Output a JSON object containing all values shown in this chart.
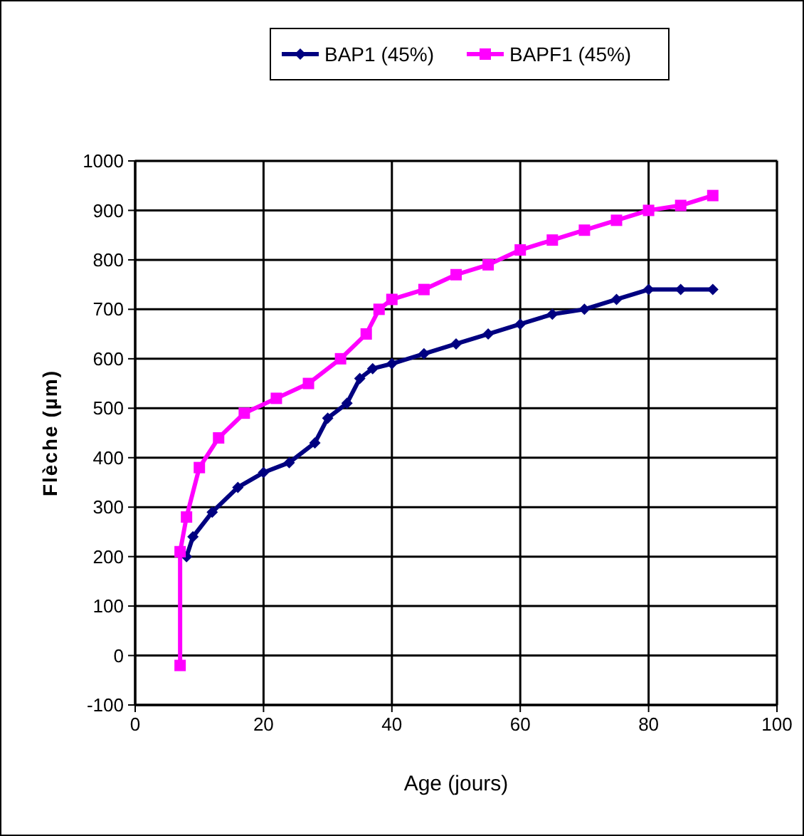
{
  "chart_data": {
    "type": "line",
    "xlabel": "Age (jours)",
    "ylabel": "Flèche (µm)",
    "xlim": [
      0,
      100
    ],
    "xticks": [
      0,
      20,
      40,
      60,
      80,
      100
    ],
    "ylim": [
      -100,
      1000
    ],
    "yticks": [
      -100,
      0,
      100,
      200,
      300,
      400,
      500,
      600,
      700,
      800,
      900,
      1000
    ],
    "grid": true,
    "legend": "top",
    "series": [
      {
        "name": "BAP1 (45%)",
        "color": "#000080",
        "marker": "diamond",
        "x": [
          8,
          9,
          12,
          16,
          20,
          24,
          28,
          30,
          33,
          35,
          37,
          40,
          45,
          50,
          55,
          60,
          65,
          70,
          75,
          80,
          85,
          90
        ],
        "values": [
          200,
          240,
          290,
          340,
          370,
          390,
          430,
          480,
          510,
          560,
          580,
          590,
          610,
          630,
          650,
          670,
          690,
          700,
          720,
          740,
          740,
          740
        ]
      },
      {
        "name": "BAPF1 (45%)",
        "color": "#ff00ff",
        "marker": "square",
        "x": [
          7,
          7,
          8,
          10,
          13,
          17,
          22,
          27,
          32,
          36,
          38,
          40,
          45,
          50,
          55,
          60,
          65,
          70,
          75,
          80,
          85,
          90
        ],
        "values": [
          -20,
          210,
          280,
          380,
          440,
          490,
          520,
          550,
          600,
          650,
          700,
          720,
          740,
          770,
          790,
          820,
          840,
          860,
          880,
          900,
          910,
          930
        ]
      }
    ]
  }
}
